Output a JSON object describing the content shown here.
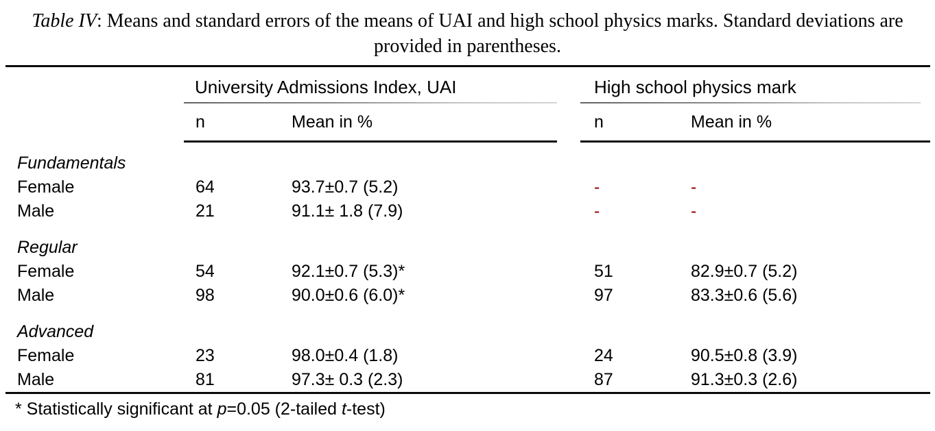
{
  "caption": {
    "label": "Table IV",
    "text": ": Means and standard errors of the means of UAI and high school physics marks. Standard deviations are provided in parentheses."
  },
  "table": {
    "col_groups": [
      {
        "label": "University Admissions Index, UAI",
        "sub_headers": [
          "n",
          "Mean in %"
        ]
      },
      {
        "label": "High school physics mark",
        "sub_headers": [
          "n",
          "Mean in %"
        ]
      }
    ],
    "groups": [
      {
        "name": "Fundamentals",
        "rows": [
          {
            "label": "Female",
            "uai_n": "64",
            "uai_mean": "93.7±0.7 (5.2)",
            "hs_n": "-",
            "hs_mean": "-"
          },
          {
            "label": "Male",
            "uai_n": "21",
            "uai_mean": "91.1± 1.8 (7.9)",
            "hs_n": "-",
            "hs_mean": "-"
          }
        ]
      },
      {
        "name": "Regular",
        "rows": [
          {
            "label": "Female",
            "uai_n": "54",
            "uai_mean": "92.1±0.7 (5.3)*",
            "hs_n": "51",
            "hs_mean": "82.9±0.7 (5.2)"
          },
          {
            "label": "Male",
            "uai_n": "98",
            "uai_mean": "90.0±0.6 (6.0)*",
            "hs_n": "97",
            "hs_mean": "83.3±0.6 (5.6)"
          }
        ]
      },
      {
        "name": "Advanced",
        "rows": [
          {
            "label": "Female",
            "uai_n": "23",
            "uai_mean": "98.0±0.4 (1.8)",
            "hs_n": "24",
            "hs_mean": "90.5±0.8 (3.9)"
          },
          {
            "label": "Male",
            "uai_n": "81",
            "uai_mean": "97.3± 0.3 (2.3)",
            "hs_n": "87",
            "hs_mean": "91.3±0.3 (2.6)"
          }
        ]
      }
    ]
  },
  "footnote": {
    "parts": [
      "* Statistically significant at ",
      "p",
      "=0.05 (2-tailed ",
      "t",
      "-test)"
    ]
  },
  "colors": {
    "dash_red": "#8b0000",
    "text": "#000000"
  }
}
